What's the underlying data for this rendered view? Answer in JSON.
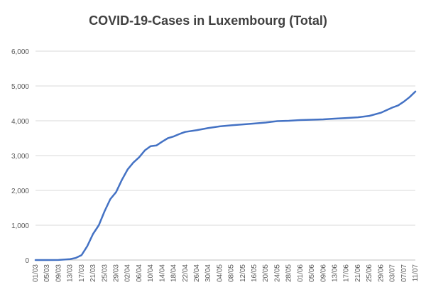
{
  "chart_data": {
    "type": "line",
    "title": "COVID-19-Cases in Luxembourg (Total)",
    "xlabel": "",
    "ylabel": "",
    "ylim": [
      0,
      6000
    ],
    "yticks": [
      0,
      1000,
      2000,
      3000,
      4000,
      5000,
      6000
    ],
    "ytick_labels": [
      "0",
      "1,000",
      "2,000",
      "3,000",
      "4,000",
      "5,000",
      "6,000"
    ],
    "xtick_labels": [
      "01/03",
      "05/03",
      "09/03",
      "13/03",
      "17/03",
      "21/03",
      "25/03",
      "29/03",
      "02/04",
      "06/04",
      "10/04",
      "14/04",
      "18/04",
      "22/04",
      "26/04",
      "30/04",
      "04/05",
      "08/05",
      "12/05",
      "16/05",
      "20/05",
      "24/05",
      "28/05",
      "01/06",
      "05/06",
      "09/06",
      "13/06",
      "17/06",
      "21/06",
      "25/06",
      "29/06",
      "03/07",
      "07/07",
      "11/07"
    ],
    "grid": true,
    "legend": "none",
    "line_color": "#4472c4",
    "series": [
      {
        "x": [
          "01/03",
          "05/03",
          "09/03",
          "13/03",
          "15/03",
          "17/03",
          "19/03",
          "21/03",
          "23/03",
          "25/03",
          "27/03",
          "29/03",
          "31/03",
          "02/04",
          "04/04",
          "06/04",
          "08/04",
          "10/04",
          "12/04",
          "14/04",
          "16/04",
          "18/04",
          "20/04",
          "22/04",
          "26/04",
          "30/04",
          "04/05",
          "08/05",
          "12/05",
          "16/05",
          "20/05",
          "24/05",
          "28/05",
          "01/06",
          "05/06",
          "09/06",
          "13/06",
          "17/06",
          "21/06",
          "25/06",
          "29/06",
          "03/07",
          "05/07",
          "07/07",
          "09/07",
          "11/07"
        ],
        "values": [
          0,
          0,
          3,
          26,
          60,
          140,
          400,
          750,
          1000,
          1400,
          1750,
          1950,
          2300,
          2600,
          2800,
          2950,
          3150,
          3270,
          3290,
          3400,
          3500,
          3550,
          3620,
          3680,
          3730,
          3790,
          3840,
          3870,
          3895,
          3920,
          3950,
          3990,
          4000,
          4020,
          4030,
          4040,
          4060,
          4080,
          4100,
          4140,
          4230,
          4380,
          4440,
          4550,
          4680,
          4840
        ]
      }
    ]
  }
}
